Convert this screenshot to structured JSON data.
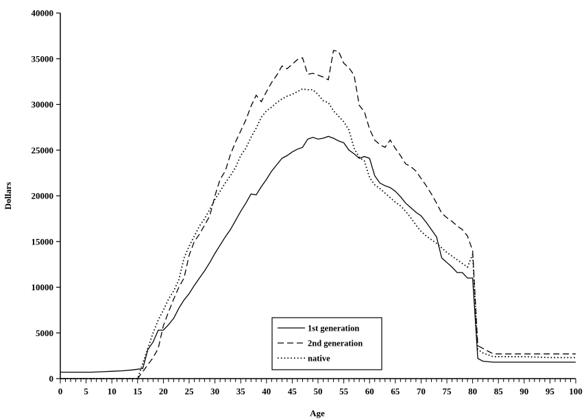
{
  "chart_data": {
    "type": "line",
    "xlabel": "Age",
    "ylabel": "Dollars",
    "xlim": [
      0,
      100
    ],
    "ylim": [
      0,
      40000
    ],
    "x_ticks": [
      "0",
      "5",
      "10",
      "15",
      "20",
      "25",
      "30",
      "35",
      "40",
      "45",
      "50",
      "55",
      "60",
      "65",
      "70",
      "75",
      "80",
      "85",
      "90",
      "95",
      "100"
    ],
    "y_ticks": [
      "0",
      "5000",
      "10000",
      "15000",
      "20000",
      "25000",
      "30000",
      "35000",
      "40000"
    ],
    "grid": false,
    "legend_position": "bottom-center",
    "series": [
      {
        "name": "1st generation",
        "style": "solid",
        "points": [
          [
            0,
            700
          ],
          [
            2,
            700
          ],
          [
            4,
            700
          ],
          [
            5,
            700
          ],
          [
            6,
            700
          ],
          [
            8,
            750
          ],
          [
            10,
            800
          ],
          [
            12,
            850
          ],
          [
            14,
            950
          ],
          [
            16,
            1100
          ],
          [
            17,
            3200
          ],
          [
            18,
            4000
          ],
          [
            19,
            5300
          ],
          [
            20,
            5300
          ],
          [
            21,
            5900
          ],
          [
            22,
            6600
          ],
          [
            23,
            7700
          ],
          [
            24,
            8600
          ],
          [
            25,
            9300
          ],
          [
            26,
            10200
          ],
          [
            27,
            11000
          ],
          [
            28,
            11800
          ],
          [
            29,
            12700
          ],
          [
            30,
            13700
          ],
          [
            31,
            14600
          ],
          [
            32,
            15500
          ],
          [
            33,
            16300
          ],
          [
            34,
            17300
          ],
          [
            35,
            18300
          ],
          [
            36,
            19200
          ],
          [
            37,
            20200
          ],
          [
            38,
            20100
          ],
          [
            39,
            21000
          ],
          [
            40,
            21800
          ],
          [
            41,
            22700
          ],
          [
            42,
            23400
          ],
          [
            43,
            24100
          ],
          [
            44,
            24400
          ],
          [
            45,
            24800
          ],
          [
            46,
            25100
          ],
          [
            47,
            25300
          ],
          [
            48,
            26200
          ],
          [
            49,
            26400
          ],
          [
            50,
            26200
          ],
          [
            51,
            26300
          ],
          [
            52,
            26500
          ],
          [
            53,
            26300
          ],
          [
            54,
            26000
          ],
          [
            55,
            25800
          ],
          [
            56,
            25000
          ],
          [
            57,
            24600
          ],
          [
            58,
            24100
          ],
          [
            59,
            24300
          ],
          [
            60,
            24100
          ],
          [
            61,
            22200
          ],
          [
            62,
            21400
          ],
          [
            63,
            21100
          ],
          [
            64,
            20900
          ],
          [
            65,
            20500
          ],
          [
            66,
            19900
          ],
          [
            67,
            19200
          ],
          [
            68,
            18700
          ],
          [
            69,
            18200
          ],
          [
            70,
            17800
          ],
          [
            71,
            17100
          ],
          [
            72,
            16300
          ],
          [
            73,
            15500
          ],
          [
            74,
            13200
          ],
          [
            75,
            12700
          ],
          [
            76,
            12200
          ],
          [
            77,
            11600
          ],
          [
            78,
            11600
          ],
          [
            79,
            11000
          ],
          [
            80,
            11000
          ],
          [
            81,
            2200
          ],
          [
            82,
            1900
          ],
          [
            84,
            1800
          ],
          [
            85,
            1800
          ],
          [
            90,
            1800
          ],
          [
            95,
            1800
          ],
          [
            100,
            1800
          ]
        ]
      },
      {
        "name": "2nd generation",
        "style": "dashed",
        "points": [
          [
            0,
            0
          ],
          [
            5,
            0
          ],
          [
            10,
            0
          ],
          [
            15,
            0
          ],
          [
            18,
            2300
          ],
          [
            19,
            3300
          ],
          [
            20,
            5800
          ],
          [
            21,
            7300
          ],
          [
            22,
            8700
          ],
          [
            23,
            10000
          ],
          [
            24,
            11000
          ],
          [
            25,
            13500
          ],
          [
            26,
            15000
          ],
          [
            27,
            15800
          ],
          [
            28,
            16800
          ],
          [
            29,
            17800
          ],
          [
            30,
            20000
          ],
          [
            31,
            21800
          ],
          [
            32,
            22700
          ],
          [
            33,
            24500
          ],
          [
            34,
            25900
          ],
          [
            35,
            27100
          ],
          [
            36,
            28300
          ],
          [
            37,
            29800
          ],
          [
            38,
            31000
          ],
          [
            39,
            30300
          ],
          [
            40,
            31400
          ],
          [
            41,
            32400
          ],
          [
            42,
            33200
          ],
          [
            43,
            34200
          ],
          [
            44,
            33900
          ],
          [
            45,
            34400
          ],
          [
            46,
            34900
          ],
          [
            47,
            35100
          ],
          [
            48,
            33300
          ],
          [
            49,
            33400
          ],
          [
            50,
            33200
          ],
          [
            51,
            33000
          ],
          [
            52,
            32700
          ],
          [
            53,
            35900
          ],
          [
            54,
            35800
          ],
          [
            55,
            34500
          ],
          [
            56,
            34000
          ],
          [
            57,
            33200
          ],
          [
            58,
            29900
          ],
          [
            59,
            29200
          ],
          [
            60,
            27300
          ],
          [
            61,
            26100
          ],
          [
            62,
            25600
          ],
          [
            63,
            25300
          ],
          [
            64,
            26100
          ],
          [
            65,
            25200
          ],
          [
            66,
            24400
          ],
          [
            67,
            23500
          ],
          [
            68,
            23200
          ],
          [
            69,
            22700
          ],
          [
            70,
            21900
          ],
          [
            71,
            21100
          ],
          [
            72,
            20200
          ],
          [
            73,
            19200
          ],
          [
            74,
            18100
          ],
          [
            75,
            17600
          ],
          [
            76,
            17200
          ],
          [
            77,
            16700
          ],
          [
            78,
            16300
          ],
          [
            79,
            15600
          ],
          [
            80,
            14000
          ],
          [
            81,
            3600
          ],
          [
            82,
            3300
          ],
          [
            84,
            2700
          ],
          [
            85,
            2700
          ],
          [
            90,
            2700
          ],
          [
            95,
            2700
          ],
          [
            100,
            2700
          ]
        ]
      },
      {
        "name": "native",
        "style": "dotted",
        "points": [
          [
            0,
            0
          ],
          [
            5,
            0
          ],
          [
            10,
            0
          ],
          [
            15,
            0
          ],
          [
            18,
            5000
          ],
          [
            19,
            6400
          ],
          [
            20,
            7500
          ],
          [
            21,
            8700
          ],
          [
            22,
            9600
          ],
          [
            23,
            10800
          ],
          [
            24,
            13200
          ],
          [
            25,
            14500
          ],
          [
            26,
            15600
          ],
          [
            27,
            16700
          ],
          [
            28,
            17500
          ],
          [
            29,
            18500
          ],
          [
            30,
            19600
          ],
          [
            31,
            20500
          ],
          [
            32,
            21400
          ],
          [
            33,
            22200
          ],
          [
            34,
            23100
          ],
          [
            35,
            24400
          ],
          [
            36,
            25200
          ],
          [
            37,
            26400
          ],
          [
            38,
            27400
          ],
          [
            39,
            28600
          ],
          [
            40,
            29300
          ],
          [
            41,
            29700
          ],
          [
            42,
            30200
          ],
          [
            43,
            30600
          ],
          [
            44,
            30900
          ],
          [
            45,
            31100
          ],
          [
            46,
            31400
          ],
          [
            47,
            31700
          ],
          [
            48,
            31600
          ],
          [
            49,
            31600
          ],
          [
            50,
            31100
          ],
          [
            51,
            30400
          ],
          [
            52,
            30200
          ],
          [
            53,
            29300
          ],
          [
            54,
            28700
          ],
          [
            55,
            28100
          ],
          [
            56,
            27200
          ],
          [
            57,
            25200
          ],
          [
            58,
            24200
          ],
          [
            59,
            23800
          ],
          [
            60,
            22000
          ],
          [
            61,
            21200
          ],
          [
            62,
            20800
          ],
          [
            63,
            20300
          ],
          [
            64,
            19800
          ],
          [
            65,
            19300
          ],
          [
            66,
            18900
          ],
          [
            67,
            18300
          ],
          [
            68,
            17600
          ],
          [
            69,
            16800
          ],
          [
            70,
            16100
          ],
          [
            71,
            15600
          ],
          [
            72,
            15200
          ],
          [
            73,
            14800
          ],
          [
            74,
            14300
          ],
          [
            75,
            13800
          ],
          [
            76,
            13400
          ],
          [
            77,
            13000
          ],
          [
            78,
            12600
          ],
          [
            79,
            12200
          ],
          [
            80,
            13600
          ],
          [
            81,
            3200
          ],
          [
            82,
            2800
          ],
          [
            84,
            2400
          ],
          [
            85,
            2400
          ],
          [
            90,
            2400
          ],
          [
            95,
            2300
          ],
          [
            100,
            2300
          ]
        ]
      }
    ]
  }
}
